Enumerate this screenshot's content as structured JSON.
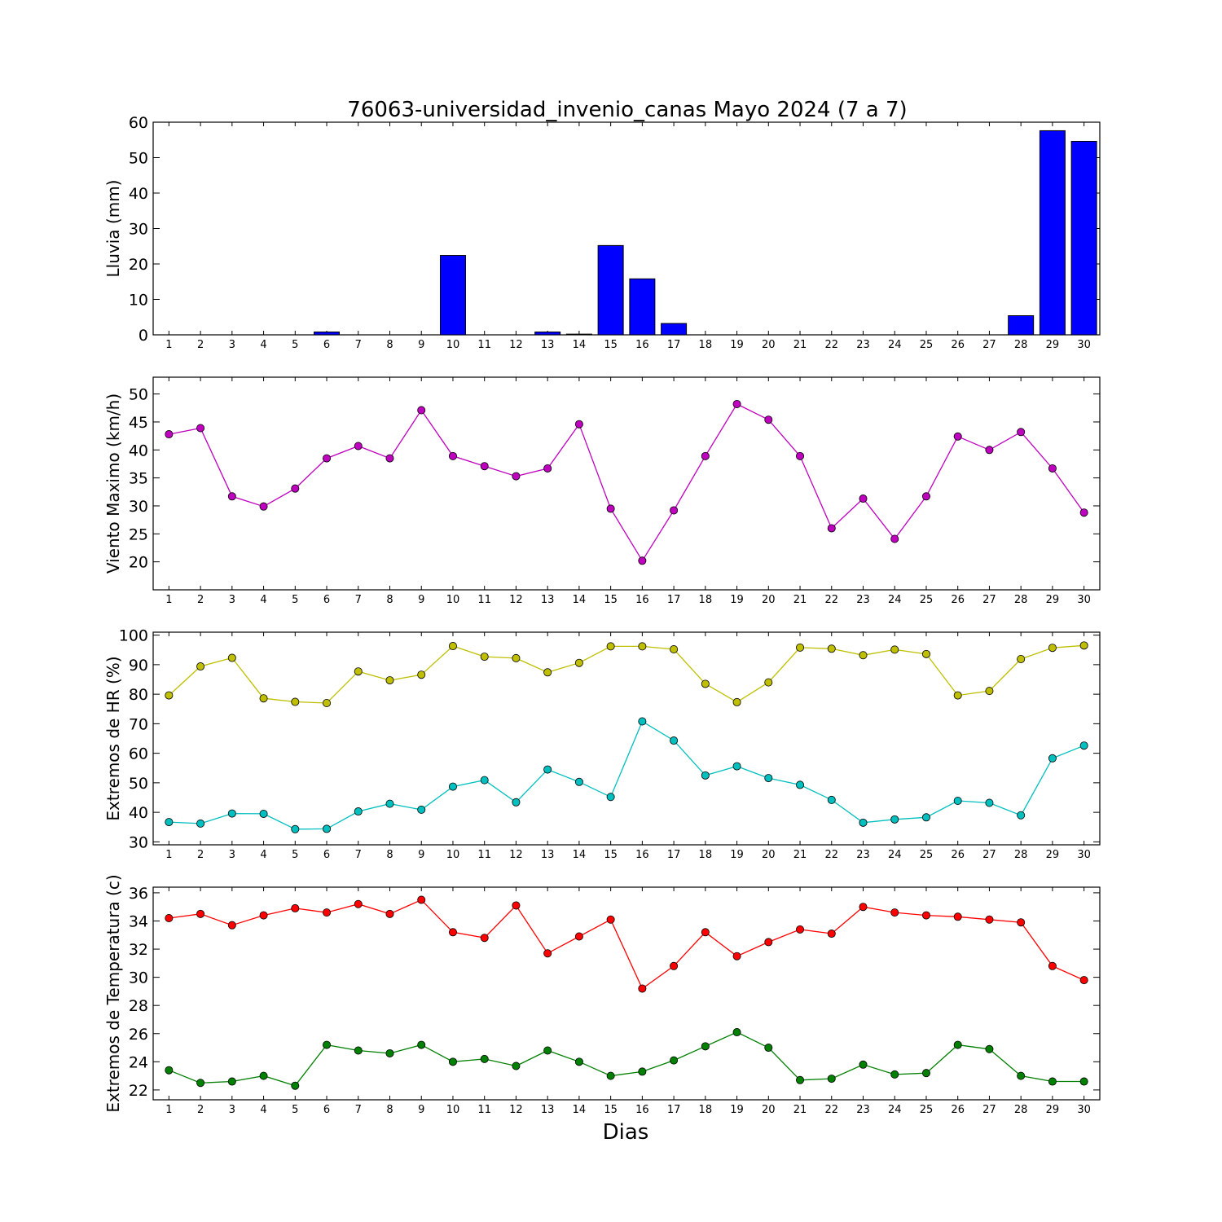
{
  "figure": {
    "title": "76063-universidad_invenio_canas Mayo 2024  (7 a 7)",
    "xlabel": "Dias"
  },
  "chart_data": [
    {
      "type": "bar",
      "ylabel": "Lluvia (mm)",
      "ylim": [
        0,
        60
      ],
      "yticks": [
        0,
        10,
        20,
        30,
        40,
        50,
        60
      ],
      "grid": false,
      "x": [
        1,
        2,
        3,
        4,
        5,
        6,
        7,
        8,
        9,
        10,
        11,
        12,
        13,
        14,
        15,
        16,
        17,
        18,
        19,
        20,
        21,
        22,
        23,
        24,
        25,
        26,
        27,
        28,
        29,
        30
      ],
      "series": [
        {
          "color": "#0000ff",
          "values": [
            0,
            0,
            0,
            0,
            0,
            0.8,
            0,
            0,
            0,
            22.4,
            0,
            0,
            0.8,
            0.2,
            25.2,
            15.8,
            3.2,
            0,
            0,
            0,
            0,
            0,
            0,
            0,
            0,
            0,
            0,
            5.4,
            57.6,
            54.6
          ]
        }
      ]
    },
    {
      "type": "line",
      "ylabel": "Viento Maximo (km/h)",
      "ylim": [
        15,
        53
      ],
      "yticks": [
        20,
        25,
        30,
        35,
        40,
        45,
        50
      ],
      "grid": false,
      "x": [
        1,
        2,
        3,
        4,
        5,
        6,
        7,
        8,
        9,
        10,
        11,
        12,
        13,
        14,
        15,
        16,
        17,
        18,
        19,
        20,
        21,
        22,
        23,
        24,
        25,
        26,
        27,
        28,
        29,
        30
      ],
      "series": [
        {
          "color": "#bf00bf",
          "values": [
            42.8,
            43.9,
            31.7,
            29.9,
            33.1,
            38.5,
            40.7,
            38.5,
            47.1,
            38.9,
            37.1,
            35.3,
            36.7,
            44.6,
            29.5,
            20.2,
            29.2,
            38.9,
            48.2,
            45.4,
            38.9,
            26.0,
            31.3,
            24.1,
            31.7,
            42.4,
            40.0,
            43.2,
            36.7,
            28.8
          ]
        }
      ]
    },
    {
      "type": "line",
      "ylabel": "Extremos de HR (%)",
      "ylim": [
        29,
        101
      ],
      "yticks": [
        30,
        40,
        50,
        60,
        70,
        80,
        90,
        100
      ],
      "grid": false,
      "x": [
        1,
        2,
        3,
        4,
        5,
        6,
        7,
        8,
        9,
        10,
        11,
        12,
        13,
        14,
        15,
        16,
        17,
        18,
        19,
        20,
        21,
        22,
        23,
        24,
        25,
        26,
        27,
        28,
        29,
        30
      ],
      "series": [
        {
          "color": "#bfbf00",
          "values": [
            79.6,
            89.4,
            92.3,
            78.6,
            77.4,
            77.0,
            87.7,
            84.7,
            86.6,
            96.3,
            92.7,
            92.2,
            87.4,
            90.6,
            96.2,
            96.2,
            95.2,
            83.5,
            77.3,
            84.0,
            95.8,
            95.4,
            93.2,
            95.1,
            93.6,
            79.6,
            81.1,
            91.9,
            95.7,
            96.5
          ]
        },
        {
          "color": "#00bfbf",
          "values": [
            36.7,
            36.2,
            39.6,
            39.5,
            34.3,
            34.4,
            40.3,
            42.9,
            40.9,
            48.7,
            50.9,
            43.4,
            54.5,
            50.3,
            45.2,
            70.8,
            64.3,
            52.5,
            55.6,
            51.6,
            49.3,
            44.2,
            36.5,
            37.6,
            38.3,
            43.9,
            43.2,
            39.0,
            58.3,
            62.6
          ]
        }
      ]
    },
    {
      "type": "line",
      "ylabel": "Extremos de Temperatura (c)",
      "ylim": [
        21.3,
        36.4
      ],
      "yticks": [
        22,
        24,
        26,
        28,
        30,
        32,
        34,
        36
      ],
      "grid": false,
      "x": [
        1,
        2,
        3,
        4,
        5,
        6,
        7,
        8,
        9,
        10,
        11,
        12,
        13,
        14,
        15,
        16,
        17,
        18,
        19,
        20,
        21,
        22,
        23,
        24,
        25,
        26,
        27,
        28,
        29,
        30
      ],
      "series": [
        {
          "color": "#ff0000",
          "values": [
            34.2,
            34.5,
            33.7,
            34.4,
            34.9,
            34.6,
            35.2,
            34.5,
            35.5,
            33.2,
            32.8,
            35.1,
            31.7,
            32.9,
            34.1,
            29.2,
            30.8,
            33.2,
            31.5,
            32.5,
            33.4,
            33.1,
            35.0,
            34.6,
            34.4,
            34.3,
            34.1,
            33.9,
            30.8,
            29.8
          ]
        },
        {
          "color": "#008000",
          "values": [
            23.4,
            22.5,
            22.6,
            23.0,
            22.3,
            25.2,
            24.8,
            24.6,
            25.2,
            24.0,
            24.2,
            23.7,
            24.8,
            24.0,
            23.0,
            23.3,
            24.1,
            25.1,
            26.1,
            25.0,
            22.7,
            22.8,
            23.8,
            23.1,
            23.2,
            25.2,
            24.9,
            23.0,
            22.6,
            22.6
          ]
        }
      ]
    }
  ]
}
